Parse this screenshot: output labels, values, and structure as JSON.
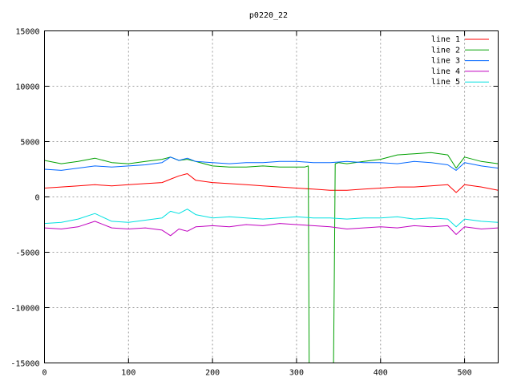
{
  "chart_data": {
    "type": "line",
    "title": "p0220_22",
    "xlabel": "",
    "ylabel": "",
    "xlim": [
      0,
      540
    ],
    "ylim": [
      -15000,
      15000
    ],
    "x_ticks": [
      0,
      100,
      200,
      300,
      400,
      500
    ],
    "x_tick_labels": [
      "0",
      "100",
      "200",
      "300",
      "400",
      "500"
    ],
    "y_ticks": [
      -15000,
      -10000,
      -5000,
      0,
      5000,
      10000,
      15000
    ],
    "y_tick_labels": [
      "-15000",
      "-10000",
      "-5000",
      "0",
      "5000",
      "10000",
      "15000"
    ],
    "grid": true,
    "legend_position": "top-right",
    "series": [
      {
        "name": "line 1",
        "color": "#ff0000",
        "x": [
          0,
          20,
          40,
          60,
          80,
          100,
          120,
          140,
          150,
          160,
          170,
          180,
          200,
          220,
          240,
          260,
          280,
          300,
          320,
          340,
          360,
          380,
          400,
          420,
          440,
          460,
          480,
          490,
          500,
          520,
          540
        ],
        "y": [
          800,
          900,
          1000,
          1100,
          1000,
          1100,
          1200,
          1300,
          1600,
          1900,
          2100,
          1500,
          1300,
          1200,
          1100,
          1000,
          900,
          800,
          700,
          600,
          600,
          700,
          800,
          900,
          900,
          1000,
          1100,
          400,
          1100,
          900,
          600
        ]
      },
      {
        "name": "line 2",
        "color": "#00a000",
        "x": [
          0,
          20,
          40,
          60,
          80,
          100,
          120,
          140,
          150,
          160,
          170,
          180,
          200,
          220,
          240,
          260,
          280,
          300,
          310,
          314,
          315,
          316,
          344,
          345,
          346,
          350,
          360,
          380,
          400,
          420,
          440,
          460,
          480,
          490,
          500,
          520,
          540
        ],
        "y": [
          3300,
          3000,
          3200,
          3500,
          3100,
          3000,
          3200,
          3400,
          3600,
          3300,
          3400,
          3200,
          2800,
          2700,
          2700,
          2800,
          2700,
          2700,
          2700,
          2800,
          -15000,
          -15000,
          -15000,
          -7000,
          3000,
          3100,
          3000,
          3200,
          3400,
          3800,
          3900,
          4000,
          3800,
          2600,
          3600,
          3200,
          3000
        ]
      },
      {
        "name": "line 3",
        "color": "#0066ff",
        "x": [
          0,
          20,
          40,
          60,
          80,
          100,
          120,
          140,
          150,
          160,
          170,
          180,
          200,
          220,
          240,
          260,
          280,
          300,
          320,
          340,
          360,
          380,
          400,
          420,
          440,
          460,
          480,
          490,
          500,
          520,
          540
        ],
        "y": [
          2500,
          2400,
          2600,
          2800,
          2700,
          2800,
          2900,
          3100,
          3600,
          3300,
          3500,
          3200,
          3100,
          3000,
          3100,
          3100,
          3200,
          3200,
          3100,
          3100,
          3200,
          3100,
          3100,
          3000,
          3200,
          3100,
          2900,
          2400,
          3100,
          2800,
          2600
        ]
      },
      {
        "name": "line 4",
        "color": "#c000c0",
        "x": [
          0,
          20,
          40,
          60,
          80,
          100,
          120,
          140,
          150,
          160,
          170,
          180,
          200,
          220,
          240,
          260,
          280,
          300,
          320,
          340,
          360,
          380,
          400,
          420,
          440,
          460,
          480,
          490,
          500,
          520,
          540
        ],
        "y": [
          -2800,
          -2900,
          -2700,
          -2200,
          -2800,
          -2900,
          -2800,
          -3000,
          -3500,
          -2900,
          -3100,
          -2700,
          -2600,
          -2700,
          -2500,
          -2600,
          -2400,
          -2500,
          -2600,
          -2700,
          -2900,
          -2800,
          -2700,
          -2800,
          -2600,
          -2700,
          -2600,
          -3400,
          -2700,
          -2900,
          -2800
        ]
      },
      {
        "name": "line 5",
        "color": "#00e0e0",
        "x": [
          0,
          20,
          40,
          60,
          80,
          100,
          120,
          140,
          150,
          160,
          170,
          180,
          200,
          220,
          240,
          260,
          280,
          300,
          320,
          340,
          360,
          380,
          400,
          420,
          440,
          460,
          480,
          490,
          500,
          520,
          540
        ],
        "y": [
          -2400,
          -2300,
          -2000,
          -1500,
          -2200,
          -2300,
          -2100,
          -1900,
          -1300,
          -1500,
          -1100,
          -1600,
          -1900,
          -1800,
          -1900,
          -2000,
          -1900,
          -1800,
          -1900,
          -1900,
          -2000,
          -1900,
          -1900,
          -1800,
          -2000,
          -1900,
          -2000,
          -2700,
          -2000,
          -2200,
          -2300
        ]
      }
    ]
  }
}
